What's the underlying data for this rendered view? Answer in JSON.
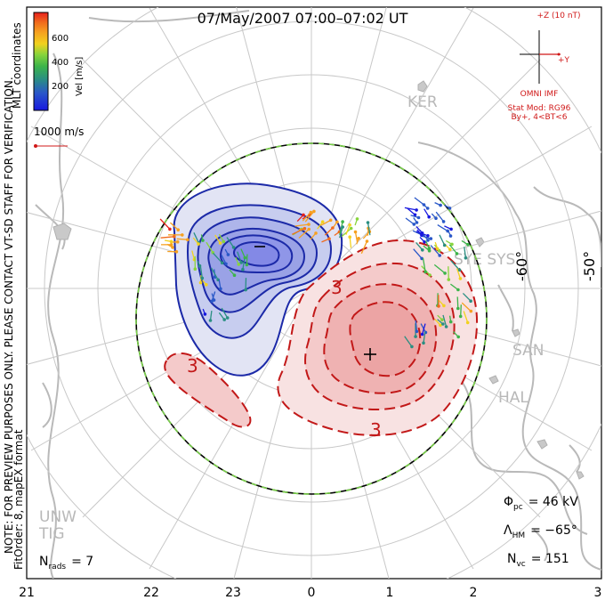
{
  "title": "07/May/2007 07:00–07:02 UT",
  "colorbar": {
    "label": "Vel [m/s]",
    "ticks": [
      "600",
      "400",
      "200"
    ],
    "colors": [
      "#e8201c",
      "#f06a1c",
      "#f6a020",
      "#f2d21e",
      "#88d43c",
      "#3cb44a",
      "#2a8f82",
      "#2a58c8",
      "#1818e0"
    ]
  },
  "coord_label": "MLT coordinates",
  "vector_scale": "1000 m/s",
  "imf": {
    "z_label": "+Z (10 nT)",
    "y_label": "+Y",
    "source": "OMNI IMF",
    "model_line1": "Stat Mod: RG96",
    "model_line2": "By+, 4<BT<6"
  },
  "stations": [
    "KER",
    "SYE SYS",
    "SAN",
    "HAL",
    "UNW",
    "TIG"
  ],
  "lat_labels": [
    "-60°",
    "-50°"
  ],
  "contour_labels": [
    "3",
    "3",
    "3"
  ],
  "side_note": "NOTE: FOR PREVIEW PURPOSES ONLY. PLEASE CONTACT VT-SD STAFF FOR VERIFICATION.",
  "fit_note": "FitOrder: 8, mapEX format",
  "stats": {
    "nrads_label": "N",
    "nrads_sub": "rads",
    "nrads_value": "= 7",
    "phi_label": "Φ",
    "phi_sub": "pc",
    "phi_value": "= 46 kV",
    "lambda_label": "Λ",
    "lambda_sub": "HM",
    "lambda_value": "= −65°",
    "nvc_label": "N",
    "nvc_sub": "vc",
    "nvc_value": "= 151"
  },
  "mlt_ticks": [
    "21",
    "22",
    "23",
    "0",
    "1",
    "2",
    "3"
  ]
}
